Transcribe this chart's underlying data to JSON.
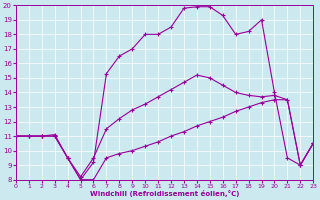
{
  "xlabel": "Windchill (Refroidissement éolien,°C)",
  "bg_color": "#cce9f0",
  "line_color": "#990099",
  "xlim": [
    0,
    23
  ],
  "ylim": [
    8,
    20
  ],
  "xticks": [
    0,
    1,
    2,
    3,
    4,
    5,
    6,
    7,
    8,
    9,
    10,
    11,
    12,
    13,
    14,
    15,
    16,
    17,
    18,
    19,
    20,
    21,
    22,
    23
  ],
  "yticks": [
    8,
    9,
    10,
    11,
    12,
    13,
    14,
    15,
    16,
    17,
    18,
    19,
    20
  ],
  "curve_x": [
    0,
    1,
    2,
    3,
    4,
    5,
    6,
    7,
    8,
    9,
    10,
    11,
    12,
    13,
    14,
    15,
    16,
    17,
    18,
    19,
    20,
    21,
    22,
    23
  ],
  "curve_y": [
    11.0,
    11.0,
    11.0,
    11.0,
    9.5,
    8.0,
    9.2,
    15.3,
    16.5,
    17.0,
    18.0,
    18.0,
    18.5,
    19.8,
    19.9,
    19.9,
    19.3,
    18.0,
    18.2,
    19.0,
    14.0,
    9.5,
    9.0,
    10.5
  ],
  "upper_diag_x": [
    0,
    1,
    2,
    3,
    4,
    5,
    6,
    7,
    8,
    9,
    10,
    11,
    12,
    13,
    14,
    15,
    16,
    17,
    18,
    19,
    20,
    21,
    22,
    23
  ],
  "upper_diag_y": [
    11.0,
    11.0,
    11.0,
    11.1,
    9.5,
    8.2,
    9.5,
    11.5,
    12.2,
    12.8,
    13.2,
    13.7,
    14.2,
    14.7,
    15.2,
    15.0,
    14.5,
    14.0,
    13.8,
    13.7,
    13.8,
    13.5,
    9.0,
    10.5
  ],
  "lower_diag_x": [
    0,
    1,
    2,
    3,
    4,
    5,
    6,
    7,
    8,
    9,
    10,
    11,
    12,
    13,
    14,
    15,
    16,
    17,
    18,
    19,
    20,
    21,
    22,
    23
  ],
  "lower_diag_y": [
    11.0,
    11.0,
    11.0,
    11.0,
    9.5,
    8.0,
    8.0,
    9.5,
    9.8,
    10.0,
    10.3,
    10.6,
    11.0,
    11.3,
    11.7,
    12.0,
    12.3,
    12.7,
    13.0,
    13.3,
    13.5,
    13.5,
    9.0,
    10.5
  ]
}
